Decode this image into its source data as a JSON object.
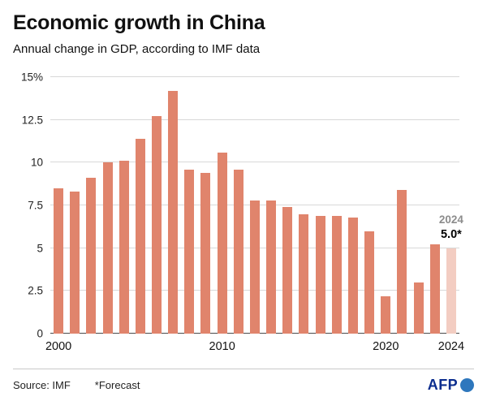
{
  "header": {
    "title": "Economic growth in China",
    "subtitle": "Annual change in GDP, according to IMF data"
  },
  "annotation": {
    "year": "2024",
    "value": "5.0*"
  },
  "footer": {
    "source": "Source: IMF",
    "forecast_note": "*Forecast",
    "logo_text": "AFP"
  },
  "chart_data": {
    "type": "bar",
    "title": "Economic growth in China",
    "subtitle": "Annual change in GDP, according to IMF data",
    "unit": "%",
    "ylim": [
      0,
      15
    ],
    "grid": true,
    "legend": "none",
    "categories": [
      "2000",
      "2001",
      "2002",
      "2003",
      "2004",
      "2005",
      "2006",
      "2007",
      "2008",
      "2009",
      "2010",
      "2011",
      "2012",
      "2013",
      "2014",
      "2015",
      "2016",
      "2017",
      "2018",
      "2019",
      "2020",
      "2021",
      "2022",
      "2023",
      "2024"
    ],
    "values": [
      8.5,
      8.3,
      9.1,
      10.0,
      10.1,
      11.4,
      12.7,
      14.2,
      9.6,
      9.4,
      10.6,
      9.6,
      7.8,
      7.8,
      7.4,
      7.0,
      6.9,
      6.9,
      6.8,
      6.0,
      2.2,
      8.4,
      3.0,
      5.2,
      5.0
    ],
    "forecast_index": 24,
    "y_ticks": [
      {
        "value": 0,
        "label": "0"
      },
      {
        "value": 2.5,
        "label": "2.5"
      },
      {
        "value": 5,
        "label": "5"
      },
      {
        "value": 7.5,
        "label": "7.5"
      },
      {
        "value": 10,
        "label": "10"
      },
      {
        "value": 12.5,
        "label": "12.5"
      },
      {
        "value": 15,
        "label": "15%"
      }
    ],
    "x_ticks": [
      {
        "index": 0,
        "label": "2000"
      },
      {
        "index": 10,
        "label": "2010"
      },
      {
        "index": 20,
        "label": "2020"
      },
      {
        "index": 24,
        "label": "2024"
      }
    ],
    "colors": {
      "bar": "#e0846c",
      "forecast_bar": "#f3cdc2",
      "gridline": "#d8d8d8",
      "baseline": "#4a4a4a"
    }
  }
}
